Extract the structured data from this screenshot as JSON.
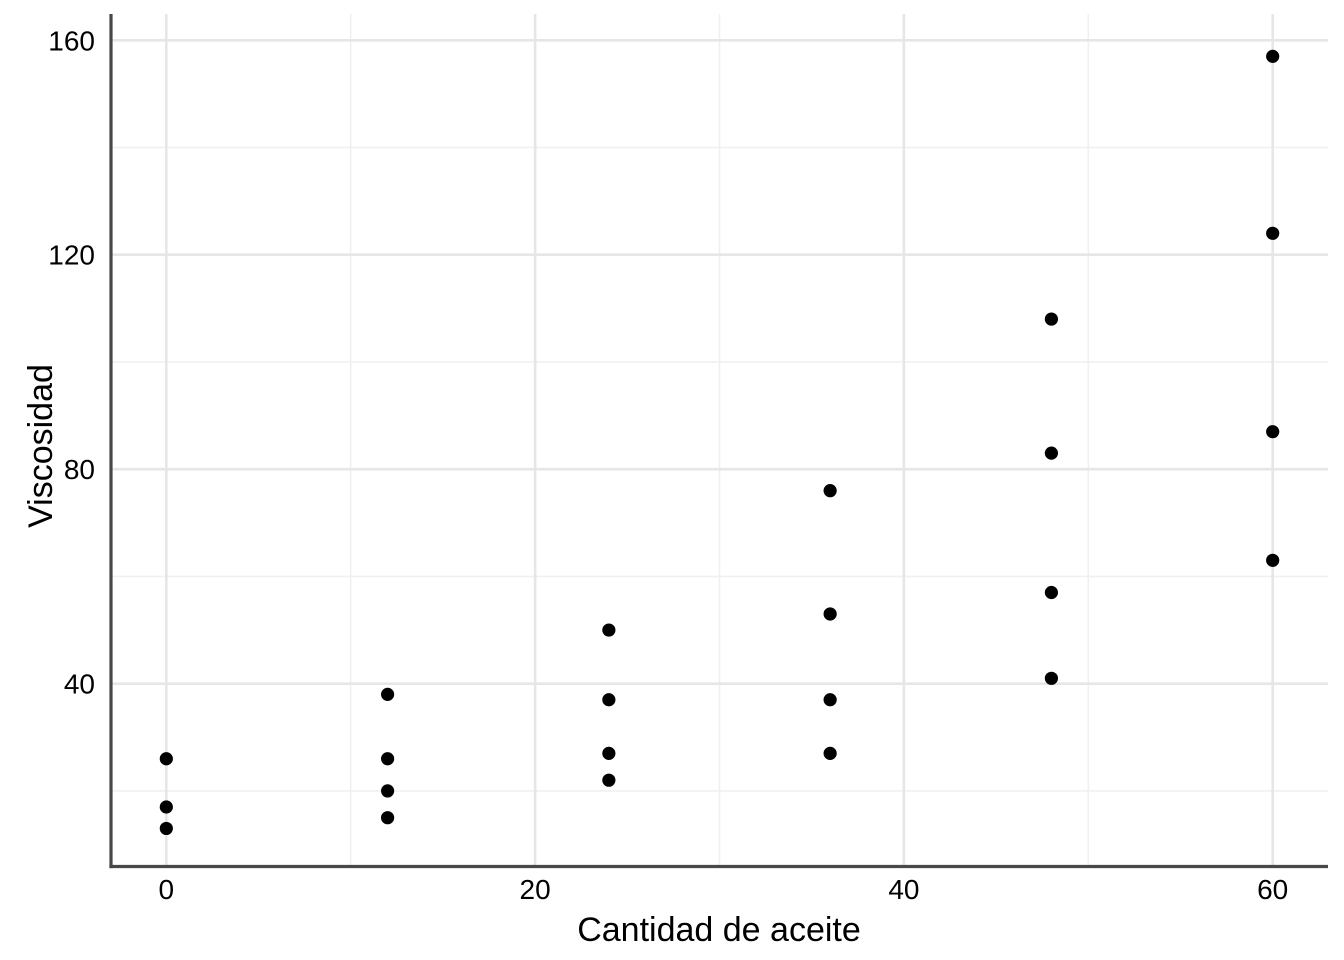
{
  "chart_data": {
    "type": "scatter",
    "title": "",
    "xlabel": "Cantidad de aceite",
    "ylabel": "Viscosidad",
    "x_tick_values": [
      0,
      20,
      40,
      60
    ],
    "x_tick_labels": [
      "0",
      "20",
      "40",
      "60"
    ],
    "y_tick_values": [
      40,
      80,
      120,
      160
    ],
    "y_tick_labels": [
      "40",
      "80",
      "120",
      "160"
    ],
    "x_minor_gridlines": [
      10,
      30,
      50
    ],
    "y_minor_gridlines": [
      20,
      60,
      100,
      140
    ],
    "xlim": [
      -3,
      63
    ],
    "ylim": [
      5.9,
      164.9
    ],
    "grid": "major and minor gridlines, light gray on white panel",
    "legend": "none",
    "marker": "filled-circle",
    "series": [
      {
        "name": "Viscosidad",
        "points": [
          {
            "x": 0,
            "y": 26
          },
          {
            "x": 0,
            "y": 17
          },
          {
            "x": 0,
            "y": 13
          },
          {
            "x": 12,
            "y": 38
          },
          {
            "x": 12,
            "y": 26
          },
          {
            "x": 12,
            "y": 20
          },
          {
            "x": 12,
            "y": 15
          },
          {
            "x": 24,
            "y": 50
          },
          {
            "x": 24,
            "y": 37
          },
          {
            "x": 24,
            "y": 27
          },
          {
            "x": 24,
            "y": 22
          },
          {
            "x": 36,
            "y": 76
          },
          {
            "x": 36,
            "y": 53
          },
          {
            "x": 36,
            "y": 37
          },
          {
            "x": 36,
            "y": 27
          },
          {
            "x": 48,
            "y": 108
          },
          {
            "x": 48,
            "y": 83
          },
          {
            "x": 48,
            "y": 57
          },
          {
            "x": 48,
            "y": 41
          },
          {
            "x": 60,
            "y": 157
          },
          {
            "x": 60,
            "y": 124
          },
          {
            "x": 60,
            "y": 87
          },
          {
            "x": 60,
            "y": 63
          }
        ]
      }
    ]
  },
  "colors": {
    "background": "#ffffff",
    "point": "#000000",
    "axis_line": "#484848",
    "grid_major": "#e6e6e6",
    "grid_minor": "#f0f0f0",
    "text": "#000000"
  }
}
